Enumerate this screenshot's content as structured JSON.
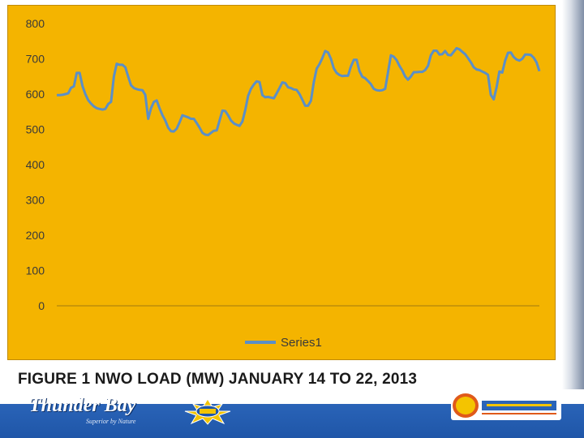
{
  "chart_data": {
    "type": "line",
    "title": "",
    "xlabel": "",
    "ylabel": "",
    "ylim": [
      0,
      800
    ],
    "yticks": [
      "800",
      "700",
      "600",
      "500",
      "400",
      "300",
      "200",
      "100",
      "0"
    ],
    "grid": false,
    "legend_placement": "bottom-center",
    "series": [
      {
        "name": "Series1",
        "color": "#5b8fc7",
        "values": [
          597,
          597,
          598,
          600,
          602,
          618,
          622,
          660,
          660,
          623,
          600,
          583,
          573,
          565,
          560,
          558,
          556,
          558,
          572,
          578,
          650,
          686,
          683,
          683,
          676,
          650,
          625,
          617,
          614,
          612,
          611,
          598,
          530,
          560,
          578,
          582,
          560,
          540,
          525,
          505,
          495,
          494,
          502,
          520,
          540,
          537,
          534,
          530,
          530,
          518,
          505,
          490,
          485,
          484,
          490,
          496,
          497,
          525,
          553,
          552,
          540,
          525,
          517,
          513,
          510,
          522,
          555,
          595,
          615,
          627,
          636,
          634,
          597,
          591,
          592,
          590,
          588,
          602,
          617,
          633,
          631,
          619,
          617,
          613,
          612,
          600,
          584,
          567,
          567,
          581,
          634,
          672,
          685,
          702,
          722,
          718,
          700,
          673,
          660,
          654,
          651,
          652,
          652,
          678,
          697,
          697,
          665,
          649,
          645,
          637,
          628,
          615,
          611,
          610,
          611,
          615,
          662,
          710,
          706,
          696,
          680,
          667,
          650,
          641,
          650,
          662,
          662,
          663,
          663,
          668,
          680,
          710,
          723,
          723,
          712,
          713,
          722,
          711,
          710,
          720,
          730,
          727,
          720,
          713,
          702,
          690,
          676,
          670,
          668,
          664,
          660,
          655,
          598,
          585,
          619,
          664,
          661,
          695,
          717,
          718,
          705,
          698,
          695,
          700,
          712,
          712,
          711,
          703,
          690,
          665
        ]
      }
    ]
  },
  "caption": "FIGURE 1 NWO LOAD (MW) JANUARY 14 TO 22, 2013",
  "footer": {
    "logo_text": "Thunder Bay",
    "logo_tagline": "Superior by Nature"
  },
  "colors": {
    "panel": "#f4b400",
    "line": "#5b8fc7",
    "footer": "#1f56a8"
  }
}
